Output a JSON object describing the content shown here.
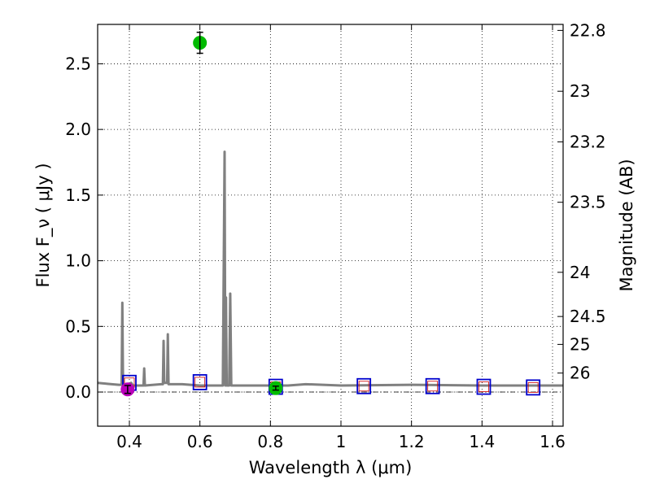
{
  "chart_data": {
    "type": "scatter",
    "title": "",
    "xlabel": "Wavelength  λ (μm)",
    "ylabel": "Flux  F_ν  ( μJy )",
    "y2label": "Magnitude (AB)",
    "xlim": [
      0.31,
      1.63
    ],
    "ylim": [
      -0.26,
      2.8
    ],
    "grid": true,
    "xticks": [
      {
        "value": 0.4,
        "label": "0.4"
      },
      {
        "value": 0.6,
        "label": "0.6"
      },
      {
        "value": 0.8,
        "label": "0.8"
      },
      {
        "value": 1.0,
        "label": "1"
      },
      {
        "value": 1.2,
        "label": "1.2"
      },
      {
        "value": 1.4,
        "label": "1.4"
      },
      {
        "value": 1.6,
        "label": "1.6"
      }
    ],
    "yticks": [
      {
        "value": 0.0,
        "label": "0.0"
      },
      {
        "value": 0.5,
        "label": "0.5"
      },
      {
        "value": 1.0,
        "label": "1.0"
      },
      {
        "value": 1.5,
        "label": "1.5"
      },
      {
        "value": 2.0,
        "label": "2.0"
      },
      {
        "value": 2.5,
        "label": "2.5"
      }
    ],
    "y2ticks": [
      {
        "value": 22.8,
        "label": "22.8"
      },
      {
        "value": 23.0,
        "label": "23"
      },
      {
        "value": 23.2,
        "label": "23.2"
      },
      {
        "value": 23.5,
        "label": "23.5"
      },
      {
        "value": 24.0,
        "label": "24"
      },
      {
        "value": 24.5,
        "label": "24.5"
      },
      {
        "value": 25.0,
        "label": "25"
      },
      {
        "value": 26.0,
        "label": "26"
      }
    ],
    "colors": {
      "model": "#808080",
      "observed_green": "#00bb00",
      "observed_magenta": "#bb00bb",
      "model_box": "#0000cc",
      "model_box_inner": "#cc0000"
    },
    "series": [
      {
        "kind": "model_sed",
        "points": [
          [
            0.31,
            0.07
          ],
          [
            0.34,
            0.062
          ],
          [
            0.37,
            0.055
          ],
          [
            0.378,
            0.055
          ],
          [
            0.38,
            0.68
          ],
          [
            0.382,
            0.055
          ],
          [
            0.4,
            0.05
          ],
          [
            0.405,
            0.07
          ],
          [
            0.41,
            0.05
          ],
          [
            0.44,
            0.05
          ],
          [
            0.442,
            0.18
          ],
          [
            0.444,
            0.05
          ],
          [
            0.49,
            0.06
          ],
          [
            0.495,
            0.06
          ],
          [
            0.497,
            0.39
          ],
          [
            0.499,
            0.07
          ],
          [
            0.507,
            0.07
          ],
          [
            0.509,
            0.44
          ],
          [
            0.511,
            0.06
          ],
          [
            0.55,
            0.06
          ],
          [
            0.6,
            0.05
          ],
          [
            0.65,
            0.05
          ],
          [
            0.665,
            0.05
          ],
          [
            0.67,
            1.83
          ],
          [
            0.672,
            0.05
          ],
          [
            0.674,
            0.72
          ],
          [
            0.676,
            0.05
          ],
          [
            0.683,
            0.05
          ],
          [
            0.686,
            0.75
          ],
          [
            0.689,
            0.05
          ],
          [
            0.75,
            0.05
          ],
          [
            0.8,
            0.05
          ],
          [
            0.85,
            0.05
          ],
          [
            0.9,
            0.06
          ],
          [
            1.0,
            0.05
          ],
          [
            1.2,
            0.055
          ],
          [
            1.4,
            0.05
          ],
          [
            1.63,
            0.05
          ]
        ]
      },
      {
        "kind": "observed",
        "color": "green",
        "points": [
          {
            "x": 0.6,
            "y": 2.66,
            "yerr": 0.08
          },
          {
            "x": 0.815,
            "y": 0.03,
            "yerr": 0.015
          }
        ]
      },
      {
        "kind": "observed",
        "color": "magenta",
        "points": [
          {
            "x": 0.395,
            "y": 0.02,
            "yerr": 0.03
          }
        ]
      },
      {
        "kind": "model_photometry",
        "points": [
          {
            "x": 0.4,
            "y": 0.07
          },
          {
            "x": 0.6,
            "y": 0.075
          },
          {
            "x": 0.815,
            "y": 0.04
          },
          {
            "x": 1.065,
            "y": 0.045
          },
          {
            "x": 1.26,
            "y": 0.045
          },
          {
            "x": 1.405,
            "y": 0.04
          },
          {
            "x": 1.545,
            "y": 0.035
          }
        ]
      }
    ]
  }
}
